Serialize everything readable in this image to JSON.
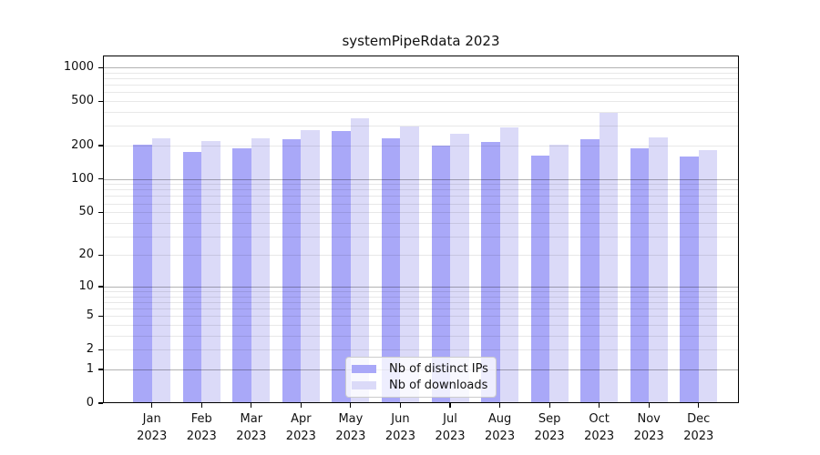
{
  "chart_data": {
    "type": "bar",
    "title": "systemPipeRdata 2023",
    "categories": [
      "Jan",
      "Feb",
      "Mar",
      "Apr",
      "May",
      "Jun",
      "Jul",
      "Aug",
      "Sep",
      "Oct",
      "Nov",
      "Dec"
    ],
    "year_label": "2023",
    "series": [
      {
        "name": "Nb of distinct IPs",
        "color": "#a9a8f8",
        "values": [
          202,
          176,
          189,
          226,
          272,
          232,
          200,
          215,
          163,
          226,
          190,
          160
        ]
      },
      {
        "name": "Nb of downloads",
        "color": "#dbdaf8",
        "values": [
          233,
          221,
          232,
          275,
          351,
          295,
          254,
          293,
          205,
          391,
          238,
          182
        ]
      }
    ],
    "yscale": "log1p",
    "ylim": [
      0,
      1300
    ],
    "y_tick_labels": [
      0,
      1,
      2,
      5,
      10,
      20,
      50,
      100,
      200,
      500,
      1000
    ],
    "gridline_values": [
      1,
      2,
      3,
      4,
      5,
      6,
      7,
      8,
      9,
      10,
      20,
      30,
      40,
      50,
      60,
      70,
      80,
      90,
      100,
      200,
      300,
      400,
      500,
      600,
      700,
      800,
      900,
      1000
    ],
    "decade_values": [
      1,
      10,
      100,
      1000
    ],
    "grid": true,
    "legend_position": "bottom-center",
    "xlabel": "",
    "ylabel": ""
  },
  "colors": {
    "background": "#ffffff",
    "spine": "#000000",
    "bar_distinct_ips": "#a9a8f8",
    "bar_downloads": "#dbdaf8",
    "gridline_minor": "rgba(0,0,0,0.09)",
    "gridline_decade": "rgba(0,0,0,0.30)"
  },
  "legend": {
    "items": [
      {
        "label": "Nb of distinct IPs"
      },
      {
        "label": "Nb of downloads"
      }
    ]
  }
}
